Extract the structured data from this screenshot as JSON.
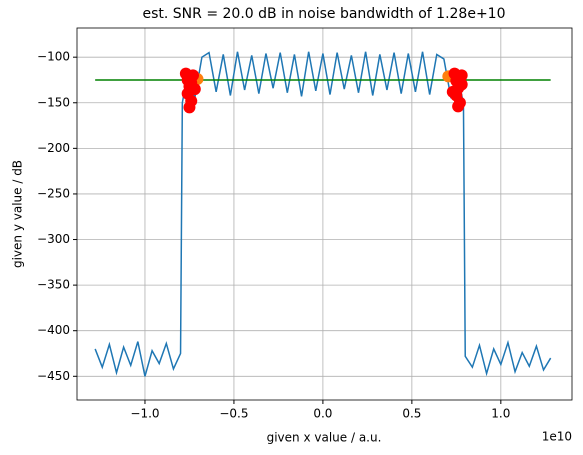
{
  "chart_data": {
    "type": "line",
    "title": "est. SNR = 20.0 dB in noise bandwidth of 1.28e+10",
    "x_label": "given x value / a.u.",
    "y_label": "given y value / dB",
    "x_offset_label": "1e10",
    "xlim": [
      -13820000000.0,
      14000000000.0
    ],
    "ylim": [
      -476,
      -68
    ],
    "xticks": [
      {
        "value": -10000000000.0,
        "label": "−1.0"
      },
      {
        "value": -5000000000.0,
        "label": "−0.5"
      },
      {
        "value": 0,
        "label": "0.0"
      },
      {
        "value": 5000000000.0,
        "label": "0.5"
      },
      {
        "value": 10000000000.0,
        "label": "1.0"
      }
    ],
    "yticks": [
      {
        "value": -100,
        "label": "−100"
      },
      {
        "value": -150,
        "label": "−150"
      },
      {
        "value": -200,
        "label": "−200"
      },
      {
        "value": -250,
        "label": "−250"
      },
      {
        "value": -300,
        "label": "−300"
      },
      {
        "value": -350,
        "label": "−350"
      },
      {
        "value": -400,
        "label": "−400"
      },
      {
        "value": -450,
        "label": "−450"
      }
    ],
    "grid": true,
    "series": [
      {
        "mode": "line",
        "color": "#1f77b4",
        "x": [
          -12800000000.0,
          -12400000000.0,
          -12000000000.0,
          -11600000000.0,
          -11200000000.0,
          -10800000000.0,
          -10400000000.0,
          -10000000000.0,
          -9600000000.0,
          -9200000000.0,
          -8800000000.0,
          -8400000000.0,
          -8000000000.0,
          -7900000000.0,
          -7600000000.0,
          -7200000000.0,
          -6800000000.0,
          -6400000000.0,
          -6000000000.0,
          -5600000000.0,
          -5200000000.0,
          -4800000000.0,
          -4400000000.0,
          -4000000000.0,
          -3600000000.0,
          -3200000000.0,
          -2800000000.0,
          -2400000000.0,
          -2000000000.0,
          -1600000000.0,
          -1200000000.0,
          -800000000.0,
          -400000000.0,
          0,
          400000000.0,
          800000000.0,
          1200000000.0,
          1600000000.0,
          2000000000.0,
          2400000000.0,
          2800000000.0,
          3200000000.0,
          3600000000.0,
          4000000000.0,
          4400000000.0,
          4800000000.0,
          5200000000.0,
          5600000000.0,
          6000000000.0,
          6400000000.0,
          6800000000.0,
          7200000000.0,
          7600000000.0,
          7900000000.0,
          8000000000.0,
          8400000000.0,
          8800000000.0,
          9200000000.0,
          9600000000.0,
          10000000000.0,
          10400000000.0,
          10800000000.0,
          11200000000.0,
          11600000000.0,
          12000000000.0,
          12400000000.0,
          12800000000.0
        ],
        "values": [
          -420,
          -440,
          -415,
          -446,
          -418,
          -438,
          -412,
          -450,
          -422,
          -436,
          -414,
          -442,
          -425,
          -150,
          -118,
          -145,
          -100,
          -95,
          -138,
          -97,
          -142,
          -94,
          -136,
          -98,
          -140,
          -96,
          -134,
          -95,
          -139,
          -97,
          -143,
          -94,
          -137,
          -96,
          -141,
          -95,
          -135,
          -98,
          -139,
          -94,
          -142,
          -97,
          -136,
          -95,
          -140,
          -96,
          -138,
          -94,
          -141,
          -97,
          -102,
          -145,
          -120,
          -152,
          -428,
          -440,
          -416,
          -447,
          -420,
          -437,
          -413,
          -445,
          -424,
          -439,
          -417,
          -443,
          -430
        ]
      },
      {
        "mode": "line",
        "color": "#008000",
        "x": [
          -12800000000.0,
          12800000000.0
        ],
        "values": [
          -125,
          -125
        ]
      },
      {
        "mode": "markers",
        "color": "#ff7f0e",
        "x": [
          -7050000000.0,
          7050000000.0
        ],
        "values": [
          -124,
          -121
        ]
      },
      {
        "mode": "markers",
        "color": "#ff0000",
        "x": [
          -7700000000.0,
          -7600000000.0,
          -7500000000.0,
          -7600000000.0,
          -7400000000.0,
          -7500000000.0,
          -7300000000.0,
          -7200000000.0,
          -7400000000.0,
          7400000000.0,
          7500000000.0,
          7600000000.0,
          7500000000.0,
          7700000000.0,
          7600000000.0,
          7800000000.0,
          7800000000.0,
          7300000000.0
        ],
        "values": [
          -118,
          -125,
          -132,
          -140,
          -148,
          -155,
          -120,
          -135,
          -128,
          -118,
          -126,
          -134,
          -142,
          -150,
          -154,
          -120,
          -130,
          -138
        ]
      }
    ]
  }
}
